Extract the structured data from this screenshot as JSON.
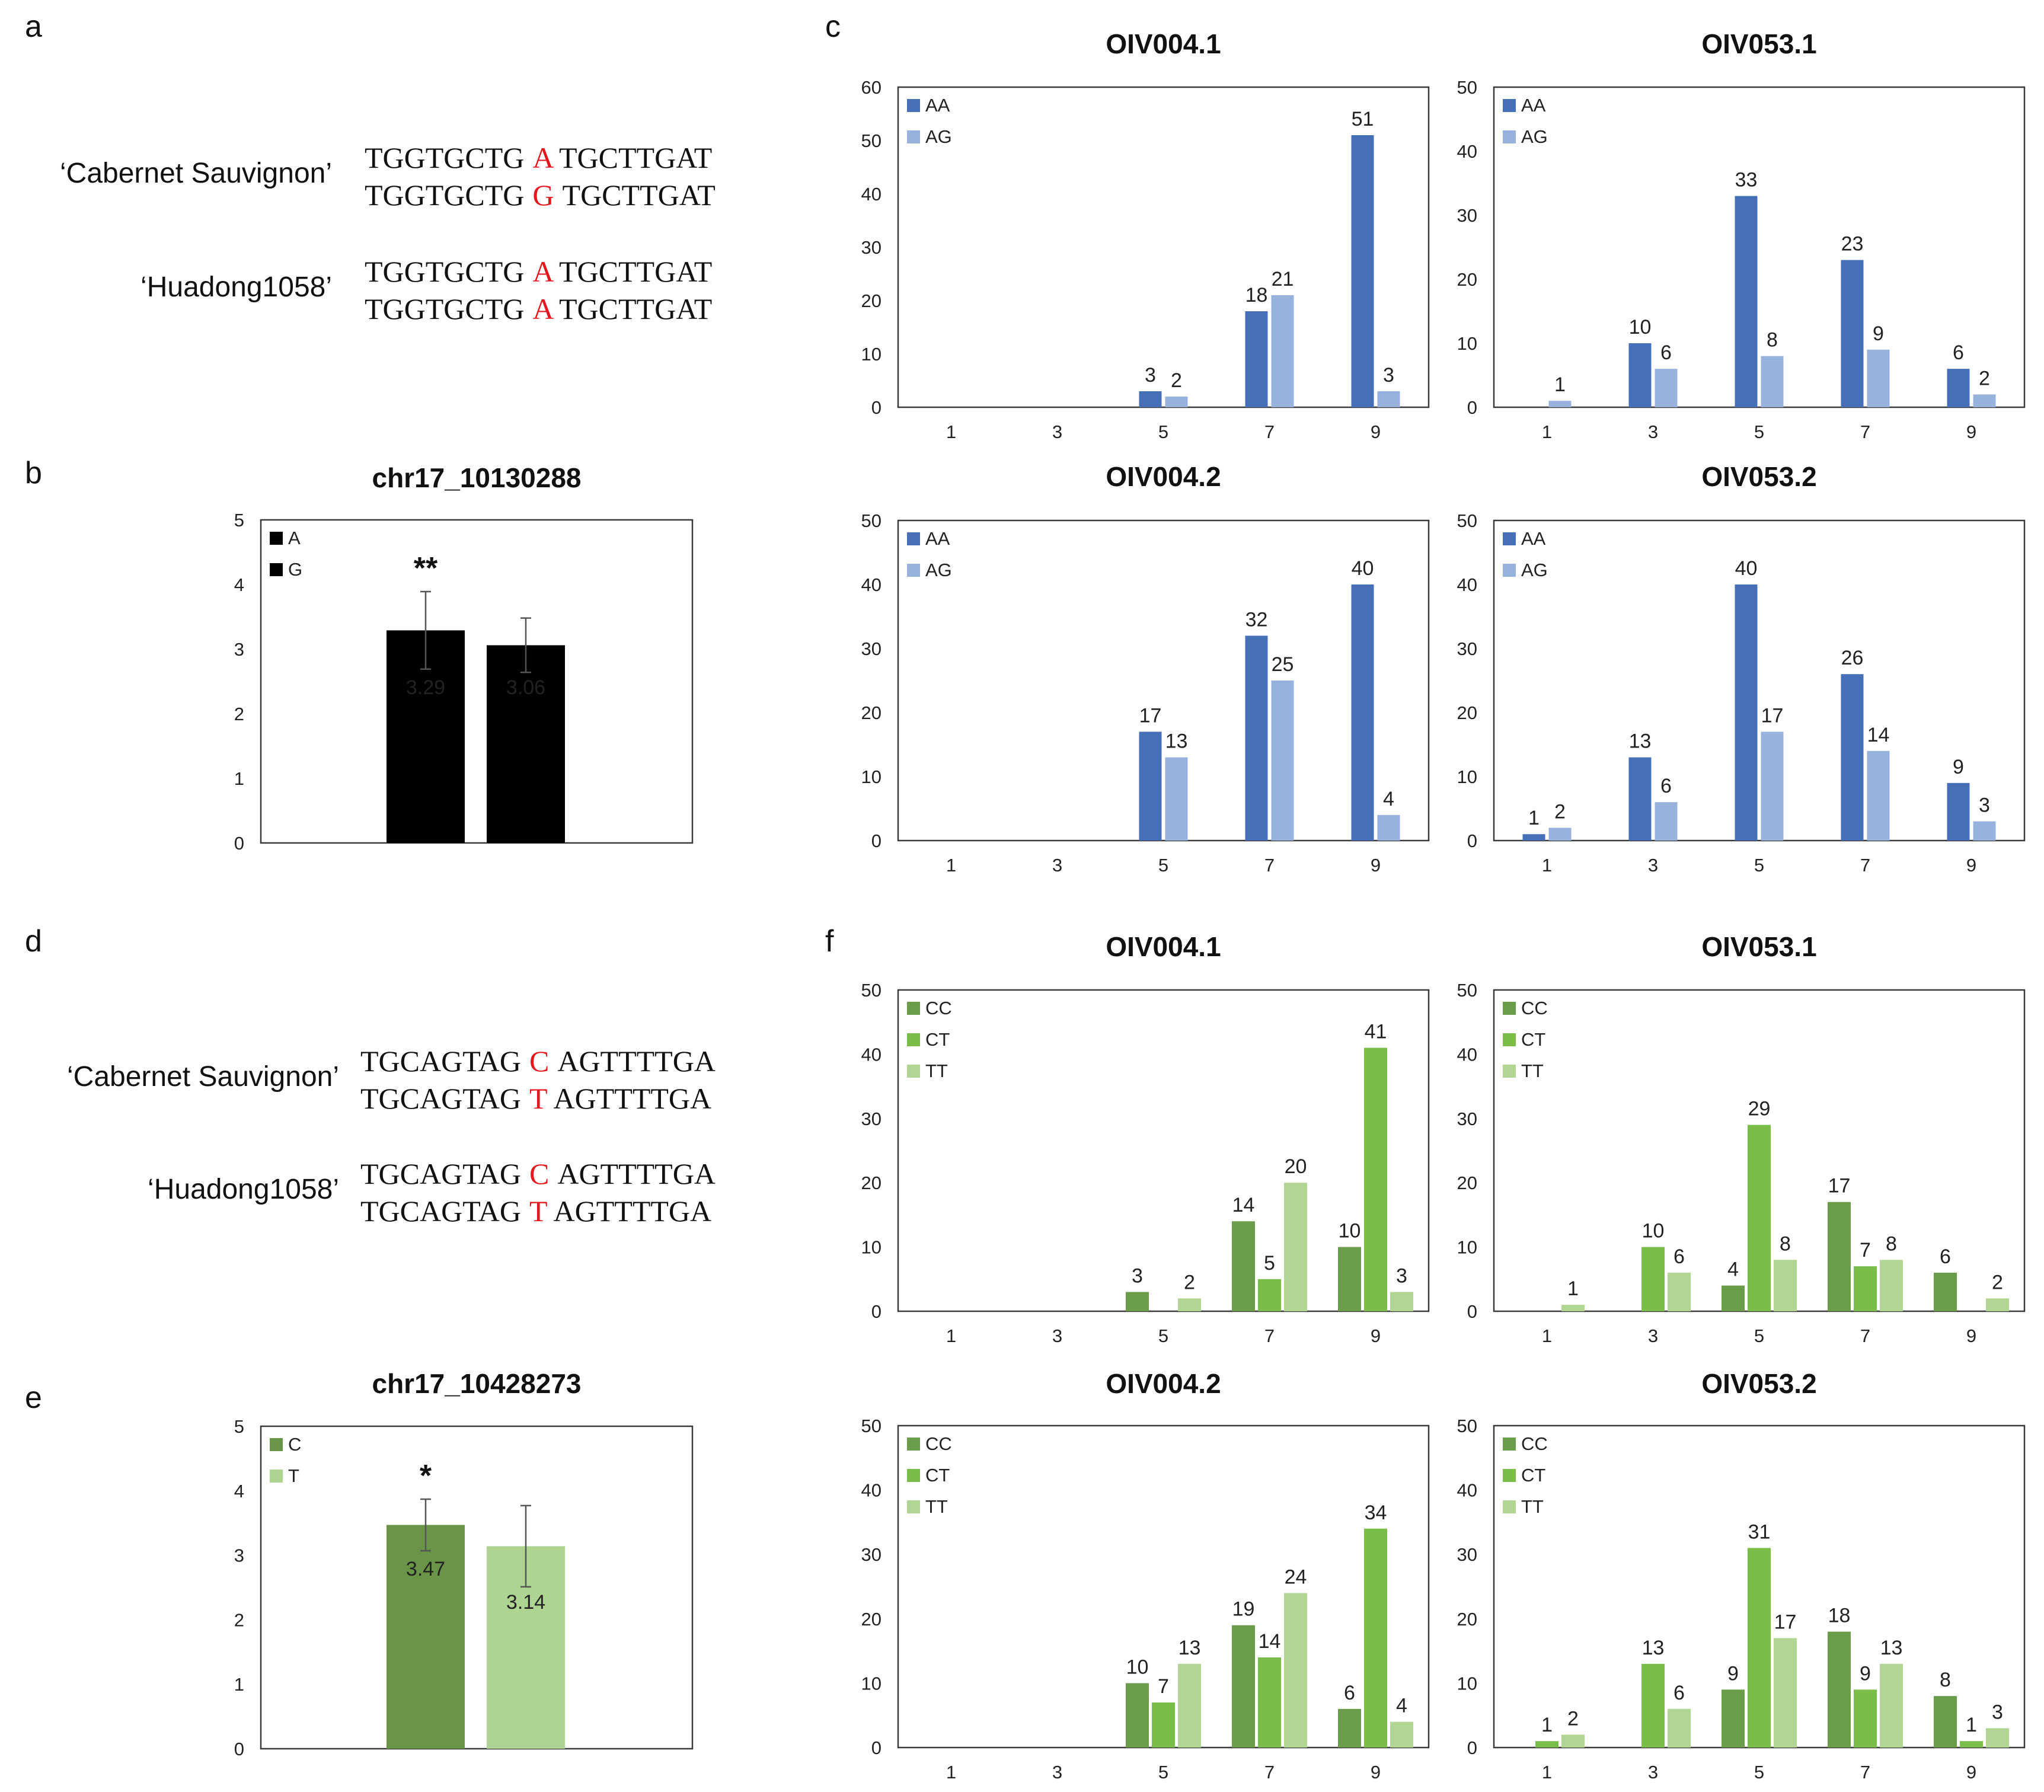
{
  "panels": {
    "a": "a",
    "b": "b",
    "c": "c",
    "d": "d",
    "e": "e",
    "f": "f"
  },
  "sequences": [
    {
      "cultivar": "‘Cabernet Sauvignon’",
      "rows": [
        [
          "TGGTGCTG",
          "A",
          "TGCTTGAT"
        ],
        [
          "TGGTGCTG",
          "G",
          "TGCTTGAT"
        ]
      ]
    },
    {
      "cultivar": "‘Huadong1058’",
      "rows": [
        [
          "TGGTGCTG",
          "A",
          "TGCTTGAT"
        ],
        [
          "TGGTGCTG",
          "A",
          "TGCTTGAT"
        ]
      ]
    },
    {
      "cultivar": "‘Cabernet Sauvignon’",
      "rows": [
        [
          "TGCAGTAG",
          "C",
          "AGTTTTGA"
        ],
        [
          "TGCAGTAG",
          "T",
          "AGTTTTGA"
        ]
      ]
    },
    {
      "cultivar": "‘Huadong1058’",
      "rows": [
        [
          "TGCAGTAG",
          "C",
          "AGTTTTGA"
        ],
        [
          "TGCAGTAG",
          "T",
          "AGTTTTGA"
        ]
      ]
    }
  ],
  "colors": {
    "AA": "#4570b8",
    "AG": "#98b2de",
    "CC": "#6a9c4a",
    "CT": "#7abd48",
    "TT": "#b1d694",
    "C": "#6a9549",
    "T": "#aed491"
  },
  "chart_data": [
    {
      "id": "b",
      "type": "bar",
      "title": "chr17_10130288",
      "ylim": [
        0,
        5
      ],
      "yticks": [
        0,
        1,
        2,
        3,
        4,
        5
      ],
      "series": [
        {
          "name": "A",
          "value": 3.29,
          "err": 0.6,
          "label": "3.29"
        },
        {
          "name": "G",
          "value": 3.06,
          "err": 0.42,
          "label": "3.06"
        }
      ],
      "annotation": "**"
    },
    {
      "id": "e",
      "type": "bar",
      "title": "chr17_10428273",
      "ylim": [
        0,
        5
      ],
      "yticks": [
        0,
        1,
        2,
        3,
        4,
        5
      ],
      "series": [
        {
          "name": "C",
          "value": 3.47,
          "err": 0.4,
          "label": "3.47"
        },
        {
          "name": "T",
          "value": 3.14,
          "err": 0.63,
          "label": "3.14"
        }
      ],
      "annotation": "*"
    },
    {
      "id": "c1",
      "type": "bar",
      "title": "OIV004.1",
      "categories": [
        "1",
        "3",
        "5",
        "7",
        "9"
      ],
      "ylim": [
        0,
        60
      ],
      "yticks": [
        0,
        10,
        20,
        30,
        40,
        50,
        60
      ],
      "series": [
        {
          "name": "AA",
          "values": [
            null,
            null,
            3,
            18,
            51
          ]
        },
        {
          "name": "AG",
          "values": [
            null,
            null,
            2,
            21,
            3
          ]
        }
      ]
    },
    {
      "id": "c2",
      "type": "bar",
      "title": "OIV053.1",
      "categories": [
        "1",
        "3",
        "5",
        "7",
        "9"
      ],
      "ylim": [
        0,
        50
      ],
      "yticks": [
        0,
        10,
        20,
        30,
        40,
        50
      ],
      "series": [
        {
          "name": "AA",
          "values": [
            null,
            10,
            33,
            23,
            6
          ]
        },
        {
          "name": "AG",
          "values": [
            1,
            6,
            8,
            9,
            2
          ]
        }
      ]
    },
    {
      "id": "c3",
      "type": "bar",
      "title": "OIV004.2",
      "categories": [
        "1",
        "3",
        "5",
        "7",
        "9"
      ],
      "ylim": [
        0,
        50
      ],
      "yticks": [
        0,
        10,
        20,
        30,
        40,
        50
      ],
      "series": [
        {
          "name": "AA",
          "values": [
            null,
            null,
            17,
            32,
            40
          ]
        },
        {
          "name": "AG",
          "values": [
            null,
            null,
            13,
            25,
            4
          ]
        }
      ]
    },
    {
      "id": "c4",
      "type": "bar",
      "title": "OIV053.2",
      "categories": [
        "1",
        "3",
        "5",
        "7",
        "9"
      ],
      "ylim": [
        0,
        50
      ],
      "yticks": [
        0,
        10,
        20,
        30,
        40,
        50
      ],
      "series": [
        {
          "name": "AA",
          "values": [
            1,
            13,
            40,
            26,
            9
          ]
        },
        {
          "name": "AG",
          "values": [
            2,
            6,
            17,
            14,
            3
          ]
        }
      ]
    },
    {
      "id": "f1",
      "type": "bar",
      "title": "OIV004.1",
      "categories": [
        "1",
        "3",
        "5",
        "7",
        "9"
      ],
      "ylim": [
        0,
        50
      ],
      "yticks": [
        0,
        10,
        20,
        30,
        40,
        50
      ],
      "series": [
        {
          "name": "CC",
          "values": [
            null,
            null,
            3,
            14,
            10
          ]
        },
        {
          "name": "CT",
          "values": [
            null,
            null,
            null,
            5,
            41
          ]
        },
        {
          "name": "TT",
          "values": [
            null,
            null,
            2,
            20,
            3
          ]
        }
      ]
    },
    {
      "id": "f2",
      "type": "bar",
      "title": "OIV053.1",
      "categories": [
        "1",
        "3",
        "5",
        "7",
        "9"
      ],
      "ylim": [
        0,
        50
      ],
      "yticks": [
        0,
        10,
        20,
        30,
        40,
        50
      ],
      "series": [
        {
          "name": "CC",
          "values": [
            null,
            null,
            4,
            17,
            6
          ]
        },
        {
          "name": "CT",
          "values": [
            null,
            10,
            29,
            7,
            null
          ]
        },
        {
          "name": "TT",
          "values": [
            1,
            6,
            8,
            8,
            2
          ]
        }
      ]
    },
    {
      "id": "f3",
      "type": "bar",
      "title": "OIV004.2",
      "categories": [
        "1",
        "3",
        "5",
        "7",
        "9"
      ],
      "ylim": [
        0,
        50
      ],
      "yticks": [
        0,
        10,
        20,
        30,
        40,
        50
      ],
      "series": [
        {
          "name": "CC",
          "values": [
            null,
            null,
            10,
            19,
            6
          ]
        },
        {
          "name": "CT",
          "values": [
            null,
            null,
            7,
            14,
            34
          ]
        },
        {
          "name": "TT",
          "values": [
            null,
            null,
            13,
            24,
            4
          ]
        }
      ]
    },
    {
      "id": "f4",
      "type": "bar",
      "title": "OIV053.2",
      "categories": [
        "1",
        "3",
        "5",
        "7",
        "9"
      ],
      "ylim": [
        0,
        50
      ],
      "yticks": [
        0,
        10,
        20,
        30,
        40,
        50
      ],
      "series": [
        {
          "name": "CC",
          "values": [
            null,
            null,
            9,
            18,
            8
          ]
        },
        {
          "name": "CT",
          "values": [
            1,
            13,
            31,
            9,
            1
          ]
        },
        {
          "name": "TT",
          "values": [
            2,
            6,
            17,
            13,
            3
          ]
        }
      ]
    }
  ]
}
